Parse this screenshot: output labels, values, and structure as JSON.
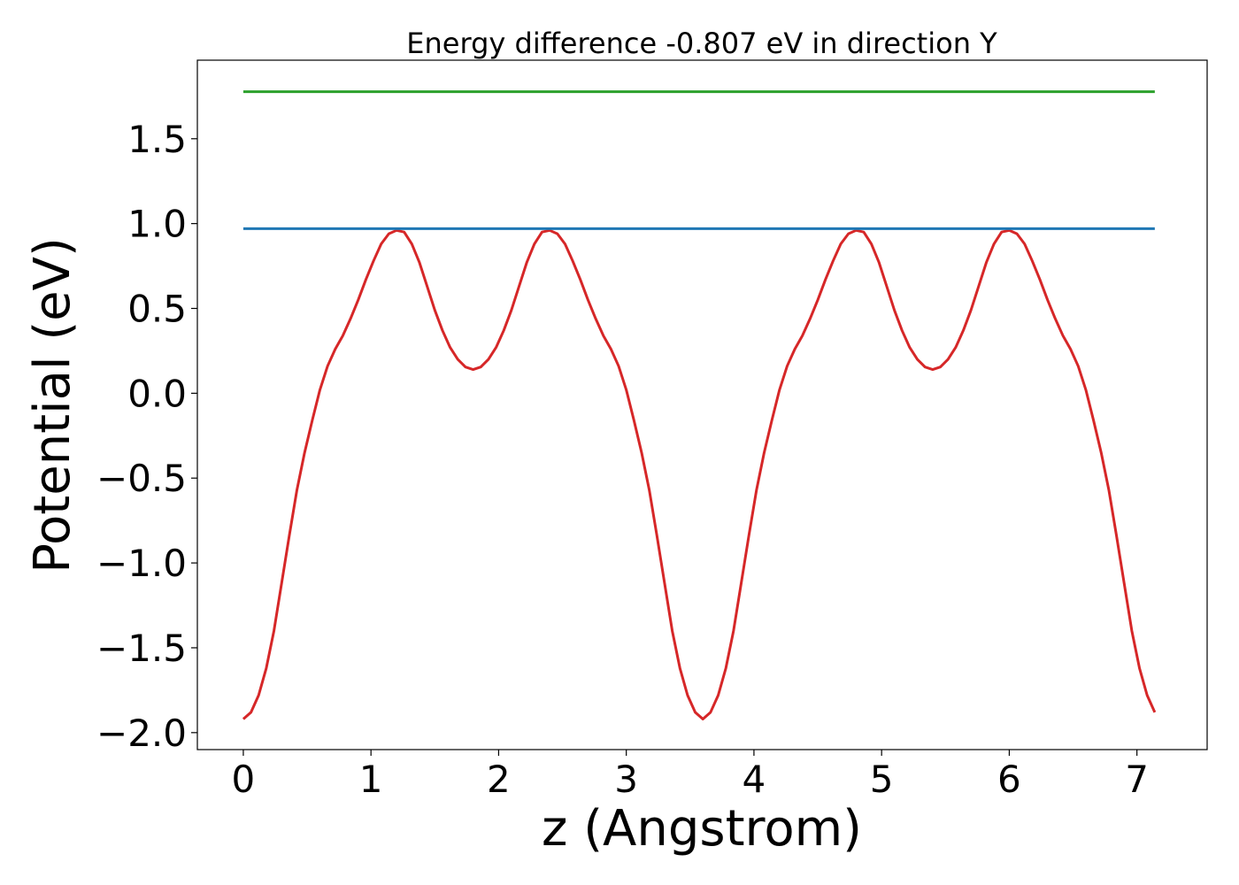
{
  "chart_data": {
    "type": "line",
    "title": "Energy difference -0.807 eV in direction Y",
    "xlabel": "z (Angstrom)",
    "ylabel": "Potential (eV)",
    "xlim": [
      -0.36,
      7.55
    ],
    "ylim": [
      -2.1,
      1.963
    ],
    "xticks": [
      0,
      1,
      2,
      3,
      4,
      5,
      6,
      7
    ],
    "yticks": [
      {
        "value": -2,
        "label": "−2.0"
      },
      {
        "value": -1.5,
        "label": "−1.5"
      },
      {
        "value": -1,
        "label": "−1.0"
      },
      {
        "value": -0.5,
        "label": "−0.5"
      },
      {
        "value": 0,
        "label": "0.0"
      },
      0.5,
      {
        "value": 1,
        "label": "1.0"
      },
      1.5
    ],
    "grid": false,
    "series": [
      {
        "color": "#d62728",
        "x": [
          0,
          0.06,
          0.12,
          0.18,
          0.24,
          0.3,
          0.36,
          0.42,
          0.48,
          0.54,
          0.6,
          0.66,
          0.72,
          0.78,
          0.84,
          0.9,
          0.96,
          1.02,
          1.08,
          1.14,
          1.2,
          1.26,
          1.32,
          1.38,
          1.44,
          1.5,
          1.56,
          1.62,
          1.68,
          1.74,
          1.8,
          1.86,
          1.92,
          1.98,
          2.04,
          2.1,
          2.16,
          2.22,
          2.28,
          2.34,
          2.4,
          2.46,
          2.52,
          2.58,
          2.64,
          2.7,
          2.76,
          2.82,
          2.88,
          2.94,
          3,
          3.06,
          3.12,
          3.18,
          3.24,
          3.3,
          3.36,
          3.42,
          3.48,
          3.54,
          3.6,
          3.66,
          3.72,
          3.78,
          3.84,
          3.9,
          3.96,
          4.02,
          4.08,
          4.14,
          4.2,
          4.26,
          4.32,
          4.38,
          4.44,
          4.5,
          4.56,
          4.62,
          4.68,
          4.74,
          4.8,
          4.86,
          4.92,
          4.98,
          5.04,
          5.1,
          5.16,
          5.22,
          5.28,
          5.34,
          5.4,
          5.46,
          5.52,
          5.58,
          5.64,
          5.7,
          5.76,
          5.82,
          5.88,
          5.94,
          6,
          6.06,
          6.12,
          6.18,
          6.24,
          6.3,
          6.36,
          6.42,
          6.48,
          6.54,
          6.6,
          6.66,
          6.72,
          6.78,
          6.84,
          6.9,
          6.96,
          7.02,
          7.08,
          7.14
        ],
        "values": [
          -1.92,
          -1.88,
          -1.78,
          -1.62,
          -1.4,
          -1.12,
          -0.84,
          -0.57,
          -0.35,
          -0.16,
          0.02,
          0.16,
          0.26,
          0.34,
          0.44,
          0.55,
          0.67,
          0.78,
          0.88,
          0.94,
          0.96,
          0.95,
          0.88,
          0.77,
          0.63,
          0.49,
          0.37,
          0.27,
          0.2,
          0.155,
          0.14,
          0.155,
          0.2,
          0.27,
          0.37,
          0.49,
          0.63,
          0.77,
          0.88,
          0.95,
          0.96,
          0.94,
          0.88,
          0.78,
          0.67,
          0.55,
          0.44,
          0.34,
          0.26,
          0.16,
          0.02,
          -0.16,
          -0.35,
          -0.57,
          -0.84,
          -1.12,
          -1.4,
          -1.62,
          -1.78,
          -1.88,
          -1.92,
          -1.88,
          -1.78,
          -1.62,
          -1.4,
          -1.12,
          -0.84,
          -0.57,
          -0.35,
          -0.16,
          0.02,
          0.16,
          0.26,
          0.34,
          0.44,
          0.55,
          0.67,
          0.78,
          0.88,
          0.94,
          0.96,
          0.95,
          0.88,
          0.77,
          0.63,
          0.49,
          0.37,
          0.27,
          0.2,
          0.155,
          0.14,
          0.155,
          0.2,
          0.27,
          0.37,
          0.49,
          0.63,
          0.77,
          0.88,
          0.95,
          0.96,
          0.94,
          0.88,
          0.78,
          0.67,
          0.55,
          0.44,
          0.34,
          0.26,
          0.16,
          0.02,
          -0.16,
          -0.35,
          -0.57,
          -0.84,
          -1.12,
          -1.4,
          -1.62,
          -1.78,
          -1.88
        ]
      },
      {
        "color": "#1f77b4",
        "x": [
          0,
          7.14
        ],
        "values": [
          0.97,
          0.97
        ]
      },
      {
        "color": "#2ca02c",
        "x": [
          0,
          7.14
        ],
        "values": [
          1.777,
          1.777
        ]
      }
    ]
  }
}
